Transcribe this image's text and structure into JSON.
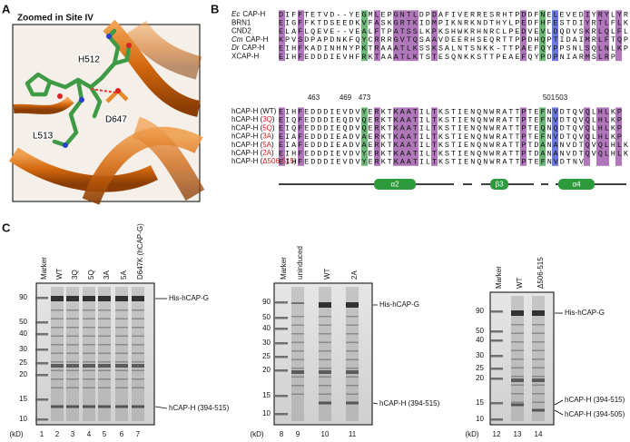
{
  "panel_a": {
    "label": "A",
    "title": "Zoomed in Site IV",
    "residues": [
      "H512",
      "D647",
      "L513"
    ]
  },
  "panel_b": {
    "label": "B",
    "species_alignment": [
      {
        "species": "Ec",
        "name": "CAP-H",
        "sequence": "DIFFTETVD--YEGMLEPGNTLDPDAFIVERRESRHTPDDFNELEVEDIYRYLYRD"
      },
      {
        "name": "BRN1",
        "sequence": "EIGFFKTDSEEDKVFASKGRTKIDMPIKNRKNDTHYLPEDFHFESTDIYRTLFLKP"
      },
      {
        "name": "CND2",
        "sequence": "ELAFLQEVE--VEALFTPATSSLKPKSHWKRHNRCLPEDVEVLDQDVSKRLQLFLKP"
      },
      {
        "species": "Cm",
        "name": "CAP-H",
        "sequence": "KPVSDPAPDNKFQYCRRRGVTQSAAVDEERHSEQRTTPPDHQPTIDAIMRLFTQP"
      },
      {
        "species": "Dr",
        "name": "CAP-H",
        "sequence": "EIHFKADINHNYPKTRAAATLKSSKSALNTSNKK-TTPAEFQYPPSNLSQLNLKP"
      },
      {
        "name": "XCAP-H",
        "sequence": "EIHFEDDDIEVHFRKTAAATLKTSTESQNKKSTTPEAEFQYPDPNIARMSLRP"
      }
    ],
    "positions": [
      463,
      469,
      473,
      501,
      503
    ],
    "mutant_alignment": [
      {
        "name": [
          "hCAP-H (WT)"
        ],
        "sequence": "EIHFEDDDIEVDVYERKTKAATILTKSTIENQNWRATTPTEFNVDTQVQLHLKP"
      },
      {
        "name": [
          "hCAP-H (",
          "3Q",
          ")"
        ],
        "sequence": "EIQFEDDDIEQDVQERKTKAATILTKSTIENQNWRATTPTEFNVDTQVQLHLKP"
      },
      {
        "name": [
          "hCAP-H (",
          "5Q",
          ")"
        ],
        "sequence": "EIQFEDDDIEQDVQERKTKAATILTKSTIENQNWRATTPTEQNQDTQVQLHLKP"
      },
      {
        "name": [
          "hCAP-H (",
          "3A",
          ")"
        ],
        "sequence": "EIAFEDDDIEADVAERKTKAATILTKSTIENQNWRATTPTEFNVDTQVQLHLKP"
      },
      {
        "name": [
          "hCAP-H (",
          "5A",
          ")"
        ],
        "sequence": "EIAFEDDDIEADVAERKTKAATILTKSTIENQNWRATTPTDANANVDTQVQLHLKP"
      },
      {
        "name": [
          "hCAP-H (",
          "2A",
          ")"
        ],
        "sequence": "EIHFEDDDIEVDVYERKTKAATILTKSTIENQNWRATTPTDANANVDTQVQLHLKP"
      },
      {
        "name": [
          "hCAP-H (",
          "Δ506-515",
          ")"
        ],
        "sequence": "EIHFEDDDIEVDVYERKTKAATILTKSTIENQNWRATTPTEFNVDTNV"
      }
    ],
    "secondary_structure": [
      "α2",
      "β3",
      "α4"
    ]
  },
  "panel_c": {
    "label": "C",
    "gels": [
      {
        "lanes": [
          "Marker",
          "WT",
          "3Q",
          "5Q",
          "3A",
          "5A",
          "D647K (hCAP-G)"
        ],
        "lane_numbers": [
          1,
          2,
          3,
          4,
          5,
          6,
          7
        ],
        "unit": "(kD)",
        "ladder": [
          90,
          50,
          40,
          30,
          25,
          20,
          15,
          10
        ],
        "bands": [
          "His-hCAP-G",
          "hCAP-H (394-515)"
        ]
      },
      {
        "lanes": [
          "Marker",
          "uninduced",
          "WT",
          "2A"
        ],
        "lane_numbers": [
          8,
          9,
          10,
          11
        ],
        "unit": "(kD)",
        "ladder": [
          90,
          50,
          40,
          30,
          25,
          20,
          15,
          10
        ],
        "bands": [
          "His-hCAP-G",
          "hCAP-H (394-515)"
        ]
      },
      {
        "lanes": [
          "Marker",
          "WT",
          "Δ506-515"
        ],
        "lane_numbers": [
          12,
          13,
          14
        ],
        "unit": "(kD)",
        "ladder": [
          90,
          50,
          40,
          30,
          25,
          20,
          15,
          10
        ],
        "bands": [
          "His-hCAP-G",
          "hCAP-H (394-515)",
          "hCAP-H (394-505)"
        ]
      }
    ]
  }
}
